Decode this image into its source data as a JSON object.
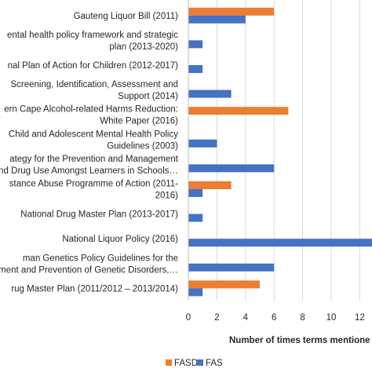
{
  "chart_data": {
    "type": "bar",
    "orientation": "horizontal",
    "categories": [
      [
        "Gauteng Liquor Bill  (2011)"
      ],
      [
        "ental health policy framework and strategic",
        "plan (2013-2020)"
      ],
      [
        "nal Plan of Action for Children (2012-2017)"
      ],
      [
        "Screening, Identification, Assessment and",
        "Support (2014)"
      ],
      [
        "ern Cape Alcohol-related Harms Reduction:",
        "White Paper (2016)"
      ],
      [
        "Child and Adolescent Mental Health Policy",
        "Guidelines (2003)"
      ],
      [
        "ategy for the Prevention and Management",
        "nd Drug Use Amongst Learners in Schools…"
      ],
      [
        "stance Abuse Programme of Action (2011-",
        "2016)"
      ],
      [
        "National Drug Master Plan (2013-2017)"
      ],
      [
        "National Liquor Policy (2016)"
      ],
      [
        "man Genetics Policy Guidelines for the",
        "ment and Prevention of Genetic Disorders,…"
      ],
      [
        "rug Master Plan (2011/2012 – 2013/2014)"
      ]
    ],
    "series": [
      {
        "name": "FASD",
        "color": "#ed7d31",
        "values": [
          6,
          0,
          0,
          0,
          7,
          0,
          0,
          3,
          0,
          0,
          0,
          5
        ]
      },
      {
        "name": "FAS",
        "color": "#4472c4",
        "values": [
          4,
          1,
          1,
          3,
          0,
          2,
          6,
          1,
          1,
          13,
          6,
          1
        ]
      }
    ],
    "xticks": [
      0,
      2,
      4,
      6,
      8,
      10,
      12
    ],
    "xlim": [
      0,
      12.8
    ],
    "xlabel": "Number of times terms mentione",
    "grid": true,
    "legend_position": "bottom"
  }
}
